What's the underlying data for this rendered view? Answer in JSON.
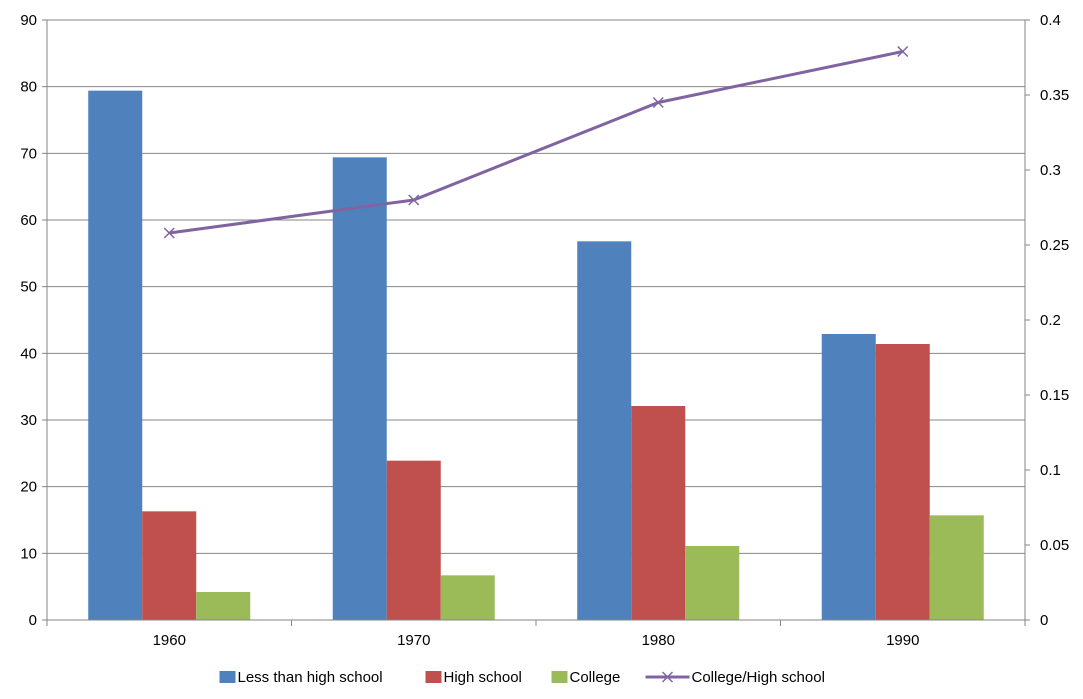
{
  "chart_data": {
    "type": "bar",
    "categories": [
      "1960",
      "1970",
      "1980",
      "1990"
    ],
    "series": [
      {
        "name": "Less than high school",
        "kind": "bar",
        "axis": "left",
        "color": "#4F81BD",
        "values": [
          79.4,
          69.4,
          56.8,
          42.9
        ]
      },
      {
        "name": "High school",
        "kind": "bar",
        "axis": "left",
        "color": "#C0504D",
        "values": [
          16.3,
          23.9,
          32.1,
          41.4
        ]
      },
      {
        "name": "College",
        "kind": "bar",
        "axis": "left",
        "color": "#9BBB59",
        "values": [
          4.2,
          6.7,
          11.1,
          15.7
        ]
      },
      {
        "name": "College/High school",
        "kind": "line",
        "axis": "right",
        "color": "#8064A2",
        "marker": "x",
        "values": [
          0.258,
          0.28,
          0.345,
          0.379
        ]
      }
    ],
    "y_left": {
      "ylim": [
        0,
        90
      ],
      "ticks": [
        "0",
        "10",
        "20",
        "30",
        "40",
        "50",
        "60",
        "70",
        "80",
        "90"
      ]
    },
    "y_right": {
      "ylim": [
        0,
        0.4
      ],
      "ticks": [
        "0",
        "0.05",
        "0.1",
        "0.15",
        "0.2",
        "0.25",
        "0.3",
        "0.35",
        "0.4"
      ]
    },
    "grid": "horizontal",
    "legend_position": "bottom",
    "title": "",
    "xlabel": "",
    "ylabel": ""
  }
}
